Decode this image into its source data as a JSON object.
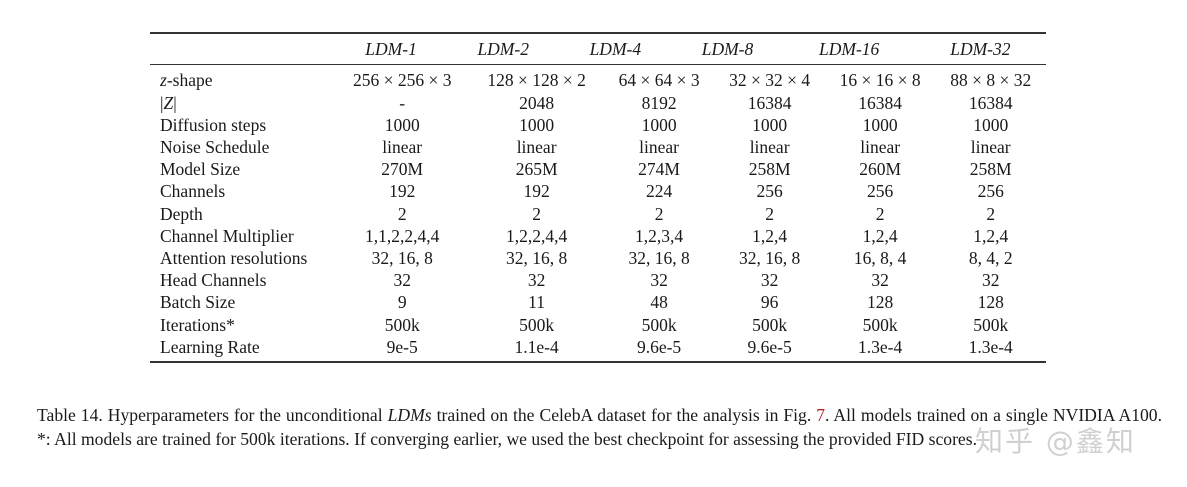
{
  "table": {
    "columns": [
      "",
      "LDM-1",
      "LDM-2",
      "LDM-4",
      "LDM-8",
      "LDM-16",
      "LDM-32"
    ],
    "rows": [
      {
        "label": "z-shape",
        "values": [
          "256 × 256 × 3",
          "128 × 128 × 2",
          "64 × 64 × 3",
          "32 × 32 × 4",
          "16 × 16 × 8",
          "88 × 8 × 32"
        ]
      },
      {
        "label": "|Z|",
        "values": [
          "-",
          "2048",
          "8192",
          "16384",
          "16384",
          "16384"
        ]
      },
      {
        "label": "Diffusion steps",
        "values": [
          "1000",
          "1000",
          "1000",
          "1000",
          "1000",
          "1000"
        ]
      },
      {
        "label": "Noise Schedule",
        "values": [
          "linear",
          "linear",
          "linear",
          "linear",
          "linear",
          "linear"
        ]
      },
      {
        "label": "Model Size",
        "values": [
          "270M",
          "265M",
          "274M",
          "258M",
          "260M",
          "258M"
        ]
      },
      {
        "label": "Channels",
        "values": [
          "192",
          "192",
          "224",
          "256",
          "256",
          "256"
        ]
      },
      {
        "label": "Depth",
        "values": [
          "2",
          "2",
          "2",
          "2",
          "2",
          "2"
        ]
      },
      {
        "label": "Channel Multiplier",
        "values": [
          "1,1,2,2,4,4",
          "1,2,2,4,4",
          "1,2,3,4",
          "1,2,4",
          "1,2,4",
          "1,2,4"
        ]
      },
      {
        "label": "Attention resolutions",
        "values": [
          "32, 16, 8",
          "32, 16, 8",
          "32, 16, 8",
          "32, 16, 8",
          "16, 8, 4",
          "8, 4, 2"
        ]
      },
      {
        "label": "Head Channels",
        "values": [
          "32",
          "32",
          "32",
          "32",
          "32",
          "32"
        ]
      },
      {
        "label": "Batch Size",
        "values": [
          "9",
          "11",
          "48",
          "96",
          "128",
          "128"
        ]
      },
      {
        "label": "Iterations*",
        "values": [
          "500k",
          "500k",
          "500k",
          "500k",
          "500k",
          "500k"
        ]
      },
      {
        "label": "Learning Rate",
        "values": [
          "9e-5",
          "1.1e-4",
          "9.6e-5",
          "9.6e-5",
          "1.3e-4",
          "1.3e-4"
        ]
      }
    ]
  },
  "caption": {
    "prefix": "Table 14.  Hyperparameters for the unconditional ",
    "italic": "LDMs",
    "middle": " trained on the CelebA dataset for the analysis in Fig. ",
    "fig_ref": "7",
    "suffix": ".  All models trained on a single NVIDIA A100.  *: All models are trained for 500k iterations.  If converging earlier, we used the best checkpoint for assessing the provided FID scores."
  },
  "watermark": "知乎 @鑫知"
}
